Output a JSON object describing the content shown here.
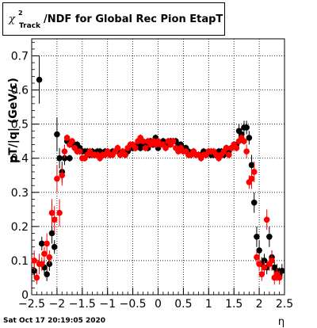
{
  "title": {
    "symbol": "χ",
    "superscript": "2",
    "subscript": "Track",
    "text": "/NDF for Global Rec Pion EtapT"
  },
  "timestamp": "Sat Oct 17 20:19:05 2020",
  "chart_data": {
    "type": "scatter",
    "title": "χ²Track/NDF for Global Rec Pion EtapT",
    "xlabel": "η",
    "ylabel": "pT/|q| (GeV/c)",
    "xlim": [
      -2.5,
      2.5
    ],
    "ylim": [
      0,
      0.75
    ],
    "xticks": [
      "−2.5",
      "−2",
      "−1.5",
      "−1",
      "−0.5",
      "0",
      "0.5",
      "1",
      "1.5",
      "2",
      "2.5"
    ],
    "yticks": [
      "0",
      "0.1",
      "0.2",
      "0.3",
      "0.4",
      "0.5",
      "0.6",
      "0.7"
    ],
    "grid": true,
    "series": [
      {
        "color": "#000000",
        "points": [
          [
            -2.45,
            0.07,
            0.02
          ],
          [
            -2.35,
            0.63,
            0.07
          ],
          [
            -2.3,
            0.15,
            0.02
          ],
          [
            -2.25,
            0.08,
            0.02
          ],
          [
            -2.2,
            0.06,
            0.02
          ],
          [
            -2.15,
            0.09,
            0.02
          ],
          [
            -2.1,
            0.18,
            0.03
          ],
          [
            -2.05,
            0.14,
            0.02
          ],
          [
            -2.0,
            0.47,
            0.05
          ],
          [
            -1.95,
            0.4,
            0.03
          ],
          [
            -1.9,
            0.36,
            0.03
          ],
          [
            -1.85,
            0.4,
            0.02
          ],
          [
            -1.8,
            0.45,
            0.01
          ],
          [
            -1.75,
            0.4,
            0.01
          ],
          [
            -1.7,
            0.44,
            0.01
          ],
          [
            -1.65,
            0.44,
            0.01
          ],
          [
            -1.6,
            0.44,
            0.01
          ],
          [
            -1.55,
            0.43,
            0.01
          ],
          [
            -1.5,
            0.42,
            0.01
          ],
          [
            -1.45,
            0.42,
            0.01
          ],
          [
            -1.4,
            0.42,
            0.01
          ],
          [
            -1.35,
            0.41,
            0.01
          ],
          [
            -1.3,
            0.42,
            0.01
          ],
          [
            -1.25,
            0.41,
            0.01
          ],
          [
            -1.2,
            0.42,
            0.01
          ],
          [
            -1.15,
            0.42,
            0.01
          ],
          [
            -1.1,
            0.41,
            0.01
          ],
          [
            -1.05,
            0.42,
            0.01
          ],
          [
            -1.0,
            0.42,
            0.01
          ],
          [
            -0.95,
            0.41,
            0.01
          ],
          [
            -0.9,
            0.42,
            0.01
          ],
          [
            -0.85,
            0.42,
            0.01
          ],
          [
            -0.8,
            0.42,
            0.01
          ],
          [
            -0.75,
            0.41,
            0.01
          ],
          [
            -0.7,
            0.42,
            0.01
          ],
          [
            -0.65,
            0.41,
            0.01
          ],
          [
            -0.6,
            0.42,
            0.01
          ],
          [
            -0.55,
            0.43,
            0.01
          ],
          [
            -0.5,
            0.43,
            0.01
          ],
          [
            -0.45,
            0.43,
            0.01
          ],
          [
            -0.4,
            0.44,
            0.01
          ],
          [
            -0.35,
            0.43,
            0.01
          ],
          [
            -0.3,
            0.44,
            0.01
          ],
          [
            -0.25,
            0.44,
            0.01
          ],
          [
            -0.2,
            0.43,
            0.01
          ],
          [
            -0.15,
            0.45,
            0.01
          ],
          [
            -0.1,
            0.44,
            0.01
          ],
          [
            -0.05,
            0.46,
            0.01
          ],
          [
            0.0,
            0.43,
            0.01
          ],
          [
            0.05,
            0.44,
            0.01
          ],
          [
            0.1,
            0.45,
            0.01
          ],
          [
            0.15,
            0.44,
            0.01
          ],
          [
            0.2,
            0.44,
            0.01
          ],
          [
            0.25,
            0.45,
            0.01
          ],
          [
            0.3,
            0.45,
            0.01
          ],
          [
            0.35,
            0.45,
            0.01
          ],
          [
            0.4,
            0.44,
            0.01
          ],
          [
            0.45,
            0.44,
            0.01
          ],
          [
            0.5,
            0.43,
            0.01
          ],
          [
            0.55,
            0.43,
            0.01
          ],
          [
            0.6,
            0.42,
            0.01
          ],
          [
            0.65,
            0.41,
            0.01
          ],
          [
            0.7,
            0.42,
            0.01
          ],
          [
            0.75,
            0.41,
            0.01
          ],
          [
            0.8,
            0.41,
            0.01
          ],
          [
            0.85,
            0.41,
            0.01
          ],
          [
            0.9,
            0.42,
            0.01
          ],
          [
            0.95,
            0.41,
            0.01
          ],
          [
            1.0,
            0.42,
            0.01
          ],
          [
            1.05,
            0.41,
            0.01
          ],
          [
            1.1,
            0.41,
            0.01
          ],
          [
            1.15,
            0.41,
            0.01
          ],
          [
            1.2,
            0.42,
            0.01
          ],
          [
            1.25,
            0.42,
            0.01
          ],
          [
            1.3,
            0.41,
            0.01
          ],
          [
            1.35,
            0.43,
            0.01
          ],
          [
            1.4,
            0.42,
            0.01
          ],
          [
            1.45,
            0.43,
            0.01
          ],
          [
            1.5,
            0.44,
            0.01
          ],
          [
            1.55,
            0.44,
            0.01
          ],
          [
            1.6,
            0.48,
            0.02
          ],
          [
            1.65,
            0.47,
            0.02
          ],
          [
            1.7,
            0.49,
            0.02
          ],
          [
            1.75,
            0.49,
            0.02
          ],
          [
            1.8,
            0.46,
            0.02
          ],
          [
            1.85,
            0.38,
            0.03
          ],
          [
            1.9,
            0.27,
            0.03
          ],
          [
            1.95,
            0.17,
            0.03
          ],
          [
            2.0,
            0.13,
            0.03
          ],
          [
            2.05,
            0.09,
            0.02
          ],
          [
            2.1,
            0.1,
            0.02
          ],
          [
            2.15,
            0.08,
            0.02
          ],
          [
            2.2,
            0.17,
            0.03
          ],
          [
            2.25,
            0.11,
            0.02
          ],
          [
            2.3,
            0.08,
            0.02
          ],
          [
            2.35,
            0.07,
            0.02
          ],
          [
            2.4,
            0.06,
            0.02
          ],
          [
            2.45,
            0.07,
            0.02
          ]
        ]
      },
      {
        "color": "#ff0000",
        "points": [
          [
            -2.45,
            0.1,
            0.03
          ],
          [
            -2.4,
            0.05,
            0.02
          ],
          [
            -2.35,
            0.09,
            0.03
          ],
          [
            -2.3,
            0.09,
            0.02
          ],
          [
            -2.25,
            0.12,
            0.02
          ],
          [
            -2.2,
            0.15,
            0.03
          ],
          [
            -2.15,
            0.11,
            0.02
          ],
          [
            -2.1,
            0.24,
            0.04
          ],
          [
            -2.05,
            0.22,
            0.04
          ],
          [
            -2.0,
            0.34,
            0.04
          ],
          [
            -1.95,
            0.24,
            0.04
          ],
          [
            -1.9,
            0.35,
            0.03
          ],
          [
            -1.85,
            0.42,
            0.02
          ],
          [
            -1.8,
            0.46,
            0.01
          ],
          [
            -1.75,
            0.44,
            0.01
          ],
          [
            -1.7,
            0.45,
            0.01
          ],
          [
            -1.65,
            0.43,
            0.01
          ],
          [
            -1.6,
            0.42,
            0.01
          ],
          [
            -1.55,
            0.42,
            0.01
          ],
          [
            -1.5,
            0.4,
            0.01
          ],
          [
            -1.45,
            0.4,
            0.01
          ],
          [
            -1.4,
            0.41,
            0.01
          ],
          [
            -1.35,
            0.42,
            0.01
          ],
          [
            -1.3,
            0.41,
            0.01
          ],
          [
            -1.25,
            0.41,
            0.01
          ],
          [
            -1.2,
            0.41,
            0.01
          ],
          [
            -1.15,
            0.4,
            0.01
          ],
          [
            -1.1,
            0.41,
            0.01
          ],
          [
            -1.05,
            0.41,
            0.01
          ],
          [
            -1.0,
            0.42,
            0.01
          ],
          [
            -0.95,
            0.41,
            0.01
          ],
          [
            -0.9,
            0.41,
            0.01
          ],
          [
            -0.85,
            0.42,
            0.01
          ],
          [
            -0.8,
            0.43,
            0.01
          ],
          [
            -0.75,
            0.41,
            0.01
          ],
          [
            -0.7,
            0.42,
            0.01
          ],
          [
            -0.65,
            0.41,
            0.01
          ],
          [
            -0.6,
            0.43,
            0.01
          ],
          [
            -0.55,
            0.44,
            0.01
          ],
          [
            -0.5,
            0.44,
            0.01
          ],
          [
            -0.45,
            0.43,
            0.01
          ],
          [
            -0.4,
            0.45,
            0.01
          ],
          [
            -0.35,
            0.46,
            0.01
          ],
          [
            -0.3,
            0.45,
            0.01
          ],
          [
            -0.25,
            0.43,
            0.01
          ],
          [
            -0.2,
            0.45,
            0.01
          ],
          [
            -0.15,
            0.44,
            0.01
          ],
          [
            -0.1,
            0.45,
            0.01
          ],
          [
            -0.05,
            0.44,
            0.01
          ],
          [
            0.0,
            0.45,
            0.01
          ],
          [
            0.05,
            0.44,
            0.01
          ],
          [
            0.1,
            0.44,
            0.01
          ],
          [
            0.15,
            0.43,
            0.01
          ],
          [
            0.2,
            0.45,
            0.01
          ],
          [
            0.25,
            0.44,
            0.01
          ],
          [
            0.3,
            0.45,
            0.01
          ],
          [
            0.35,
            0.43,
            0.01
          ],
          [
            0.4,
            0.42,
            0.01
          ],
          [
            0.45,
            0.43,
            0.01
          ],
          [
            0.5,
            0.42,
            0.01
          ],
          [
            0.55,
            0.42,
            0.01
          ],
          [
            0.6,
            0.41,
            0.01
          ],
          [
            0.65,
            0.41,
            0.01
          ],
          [
            0.7,
            0.42,
            0.01
          ],
          [
            0.75,
            0.41,
            0.01
          ],
          [
            0.8,
            0.41,
            0.01
          ],
          [
            0.85,
            0.4,
            0.01
          ],
          [
            0.9,
            0.41,
            0.01
          ],
          [
            0.95,
            0.41,
            0.01
          ],
          [
            1.0,
            0.42,
            0.01
          ],
          [
            1.05,
            0.42,
            0.01
          ],
          [
            1.1,
            0.42,
            0.01
          ],
          [
            1.15,
            0.41,
            0.01
          ],
          [
            1.2,
            0.4,
            0.01
          ],
          [
            1.25,
            0.41,
            0.01
          ],
          [
            1.3,
            0.42,
            0.01
          ],
          [
            1.35,
            0.43,
            0.01
          ],
          [
            1.4,
            0.41,
            0.01
          ],
          [
            1.45,
            0.43,
            0.01
          ],
          [
            1.5,
            0.44,
            0.01
          ],
          [
            1.55,
            0.43,
            0.01
          ],
          [
            1.6,
            0.45,
            0.01
          ],
          [
            1.65,
            0.46,
            0.01
          ],
          [
            1.7,
            0.45,
            0.01
          ],
          [
            1.75,
            0.42,
            0.02
          ],
          [
            1.8,
            0.33,
            0.02
          ],
          [
            1.85,
            0.34,
            0.03
          ],
          [
            1.9,
            0.36,
            0.03
          ],
          [
            1.95,
            0.11,
            0.02
          ],
          [
            2.0,
            0.09,
            0.02
          ],
          [
            2.05,
            0.06,
            0.02
          ],
          [
            2.1,
            0.08,
            0.02
          ],
          [
            2.15,
            0.22,
            0.03
          ],
          [
            2.2,
            0.09,
            0.02
          ],
          [
            2.25,
            0.1,
            0.03
          ],
          [
            2.3,
            0.05,
            0.02
          ],
          [
            2.35,
            0.06,
            0.02
          ],
          [
            2.4,
            0.05,
            0.02
          ]
        ]
      }
    ]
  }
}
